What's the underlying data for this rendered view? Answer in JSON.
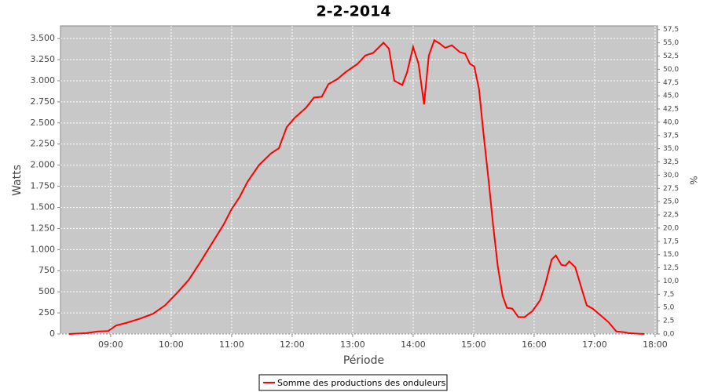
{
  "chart_data": {
    "type": "line",
    "title": "2-2-2014",
    "x_label": "Période",
    "y_label": "Watts",
    "y2_label": "%",
    "x": [
      8.31,
      8.6,
      8.79,
      8.96,
      9.09,
      9.25,
      9.48,
      9.7,
      9.9,
      10.09,
      10.29,
      10.48,
      10.61,
      10.74,
      10.87,
      11.0,
      11.13,
      11.26,
      11.45,
      11.65,
      11.78,
      11.91,
      12.04,
      12.23,
      12.36,
      12.49,
      12.6,
      12.75,
      12.88,
      13.08,
      13.21,
      13.34,
      13.51,
      13.6,
      13.69,
      13.82,
      13.9,
      14.0,
      14.09,
      14.18,
      14.26,
      14.35,
      14.44,
      14.53,
      14.64,
      14.77,
      14.86,
      14.94,
      15.01,
      15.09,
      15.16,
      15.25,
      15.32,
      15.4,
      15.48,
      15.55,
      15.64,
      15.74,
      15.84,
      15.97,
      16.1,
      16.19,
      16.29,
      16.36,
      16.45,
      16.52,
      16.58,
      16.68,
      16.78,
      16.87,
      16.97,
      17.1,
      17.23,
      17.36,
      17.49,
      17.56,
      17.69,
      17.82
    ],
    "series": [
      {
        "name": "Somme des productions des onduleurs",
        "color": "#ff0000",
        "values": [
          0,
          10,
          30,
          35,
          100,
          130,
          180,
          240,
          340,
          480,
          640,
          850,
          1000,
          1150,
          1300,
          1480,
          1620,
          1800,
          2000,
          2140,
          2200,
          2450,
          2560,
          2680,
          2800,
          2810,
          2960,
          3020,
          3100,
          3200,
          3300,
          3330,
          3450,
          3380,
          3000,
          2950,
          3100,
          3400,
          3200,
          2720,
          3300,
          3480,
          3440,
          3390,
          3420,
          3340,
          3320,
          3200,
          3170,
          2900,
          2400,
          1800,
          1300,
          800,
          450,
          310,
          300,
          200,
          200,
          270,
          400,
          600,
          880,
          930,
          820,
          810,
          860,
          790,
          550,
          340,
          300,
          220,
          140,
          30,
          20,
          10,
          5,
          0
        ]
      }
    ],
    "xlim": [
      8.17,
      18.04
    ],
    "xticks": [
      {
        "value": 9,
        "label": "09:00"
      },
      {
        "value": 10,
        "label": "10:00"
      },
      {
        "value": 11,
        "label": "11:00"
      },
      {
        "value": 12,
        "label": "12:00"
      },
      {
        "value": 13,
        "label": "13:00"
      },
      {
        "value": 14,
        "label": "14:00"
      },
      {
        "value": 15,
        "label": "15:00"
      },
      {
        "value": 16,
        "label": "16:00"
      },
      {
        "value": 17,
        "label": "17:00"
      },
      {
        "value": 18,
        "label": "18:00"
      }
    ],
    "ylim": [
      0,
      3650
    ],
    "yticks": [
      0,
      250,
      500,
      750,
      {
        "value": 1000,
        "label": "1.000"
      },
      {
        "value": 1250,
        "label": "1.250"
      },
      {
        "value": 1500,
        "label": "1.500"
      },
      {
        "value": 1750,
        "label": "1.750"
      },
      {
        "value": 2000,
        "label": "2.000"
      },
      {
        "value": 2250,
        "label": "2.250"
      },
      {
        "value": 2500,
        "label": "2.500"
      },
      {
        "value": 2750,
        "label": "2.750"
      },
      {
        "value": 3000,
        "label": "3.000"
      },
      {
        "value": 3250,
        "label": "3.250"
      },
      {
        "value": 3500,
        "label": "3.500"
      }
    ],
    "y2lim": [
      0,
      58.2
    ],
    "y2ticks": [
      {
        "value": 0,
        "label": "0,0"
      },
      {
        "value": 2.5,
        "label": "2,5"
      },
      {
        "value": 5,
        "label": "5,0"
      },
      {
        "value": 7.5,
        "label": "7,5"
      },
      {
        "value": 10,
        "label": "10,0"
      },
      {
        "value": 12.5,
        "label": "12,5"
      },
      {
        "value": 15,
        "label": "15,0"
      },
      {
        "value": 17.5,
        "label": "17,5"
      },
      {
        "value": 20,
        "label": "20,0"
      },
      {
        "value": 22.5,
        "label": "22,5"
      },
      {
        "value": 25,
        "label": "25,0"
      },
      {
        "value": 27.5,
        "label": "27,5"
      },
      {
        "value": 30,
        "label": "30,0"
      },
      {
        "value": 32.5,
        "label": "32,5"
      },
      {
        "value": 35,
        "label": "35,0"
      },
      {
        "value": 37.5,
        "label": "37,5"
      },
      {
        "value": 40,
        "label": "40,0"
      },
      {
        "value": 42.5,
        "label": "42,5"
      },
      {
        "value": 45,
        "label": "45,0"
      },
      {
        "value": 47.5,
        "label": "47,5"
      },
      {
        "value": 50,
        "label": "50,0"
      },
      {
        "value": 52.5,
        "label": "52,5"
      },
      {
        "value": 55,
        "label": "55,0"
      },
      {
        "value": 57.5,
        "label": "57,5"
      }
    ],
    "grid": true
  }
}
